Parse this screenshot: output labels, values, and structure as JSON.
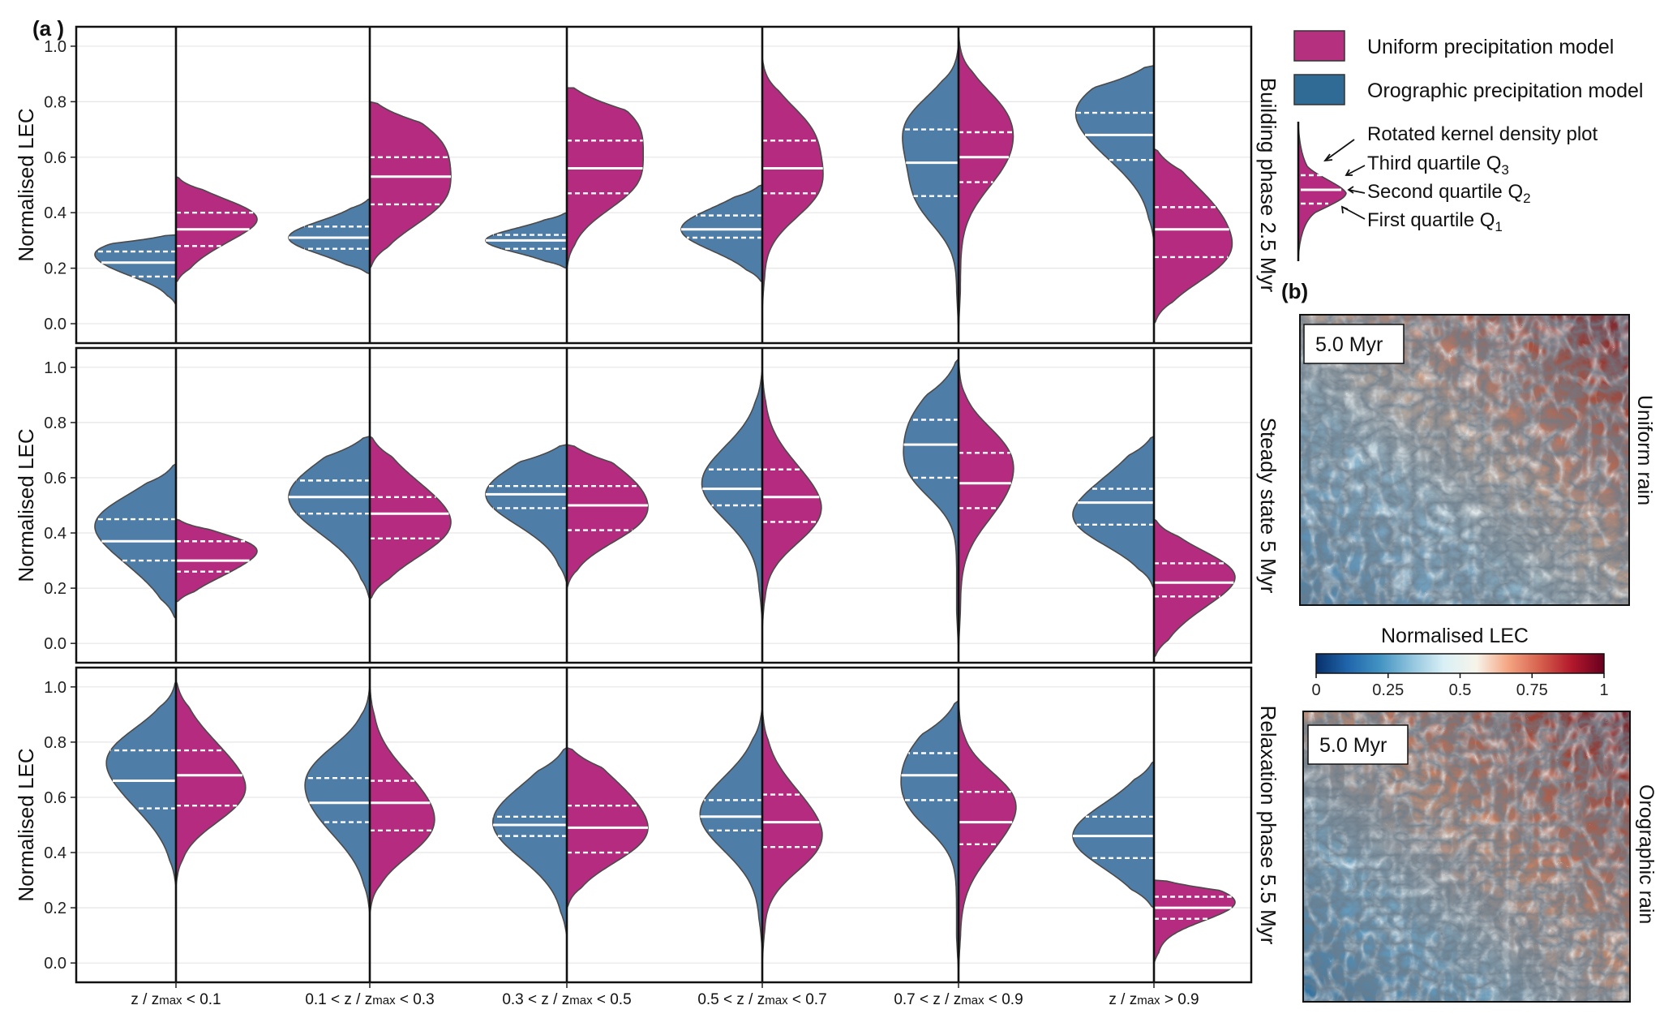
{
  "panel_labels": {
    "a": "(a )",
    "b": "(b)"
  },
  "legend": {
    "items": [
      {
        "label": "Uniform precipitation model",
        "color": "#b5307f"
      },
      {
        "label": "Orographic precipitation model",
        "color": "#2f6b94"
      }
    ],
    "violin_annotations": {
      "kde": "Rotated kernel density plot",
      "q3": "Third quartile  Q",
      "q3_sub": "3",
      "q2": "Second quartile Q",
      "q2_sub": "2",
      "q1": "First quartile Q",
      "q1_sub": "1"
    }
  },
  "maps": [
    {
      "time_label": "5.0 Myr",
      "side_label": "Uniform rain"
    },
    {
      "time_label": "5.0 Myr",
      "side_label": "Orographic rain"
    }
  ],
  "colorbar": {
    "title": "Normalised LEC",
    "ticks": [
      "0",
      "0.25",
      "0.5",
      "0.75",
      "1"
    ],
    "tick_values": [
      0,
      0.25,
      0.5,
      0.75,
      1
    ],
    "colors": [
      "#08306b",
      "#2166ac",
      "#4393c3",
      "#92c5de",
      "#d9f0f6",
      "#f7f4ea",
      "#f4a582",
      "#d6604d",
      "#b2182b",
      "#67001f"
    ]
  },
  "chart_data": {
    "type": "violin",
    "ylabel": "Normalised LEC",
    "ylim": [
      -0.07,
      1.07
    ],
    "yticks": [
      "0.0",
      "0.2",
      "0.4",
      "0.6",
      "0.8",
      "1.0"
    ],
    "ytick_values": [
      0,
      0.2,
      0.4,
      0.6,
      0.8,
      1.0
    ],
    "series_colors": {
      "orographic": "#4e7da8",
      "uniform": "#b42b7f"
    },
    "categories": [
      {
        "pre": "z / z",
        "sub": "max",
        "post": " < 0.1"
      },
      {
        "pre": "0.1 < z / z",
        "sub": "max",
        "post": " < 0.3"
      },
      {
        "pre": "0.3 < z / z",
        "sub": "max",
        "post": " < 0.5"
      },
      {
        "pre": "0.5 < z / z",
        "sub": "max",
        "post": " < 0.7"
      },
      {
        "pre": "0.7 < z / z",
        "sub": "max",
        "post": " < 0.9"
      },
      {
        "pre": "z / z",
        "sub": "max",
        "post": " > 0.9"
      }
    ],
    "panels": [
      {
        "title": "Building phase 2.5 Myr",
        "violins": [
          {
            "oro": {
              "range": [
                0.07,
                0.32
              ],
              "q": [
                0.17,
                0.22,
                0.26
              ],
              "peaks": [
                [
                  0.22,
                  0.9
                ],
                [
                  0.28,
                  0.5
                ]
              ]
            },
            "uni": {
              "range": [
                0.15,
                0.53
              ],
              "q": [
                0.28,
                0.34,
                0.4
              ],
              "peaks": [
                [
                  0.34,
                  0.95
                ],
                [
                  0.4,
                  0.7
                ]
              ]
            }
          },
          {
            "oro": {
              "range": [
                0.18,
                0.45
              ],
              "q": [
                0.27,
                0.31,
                0.35
              ],
              "peaks": [
                [
                  0.31,
                  1.0
                ]
              ]
            },
            "uni": {
              "range": [
                0.2,
                0.8
              ],
              "q": [
                0.43,
                0.53,
                0.6
              ],
              "peaks": [
                [
                  0.55,
                  1.0
                ],
                [
                  0.42,
                  0.55
                ],
                [
                  0.68,
                  0.5
                ]
              ]
            }
          },
          {
            "oro": {
              "range": [
                0.2,
                0.4
              ],
              "q": [
                0.27,
                0.3,
                0.32
              ],
              "peaks": [
                [
                  0.3,
                  0.9
                ]
              ]
            },
            "uni": {
              "range": [
                0.2,
                0.85
              ],
              "q": [
                0.47,
                0.56,
                0.66
              ],
              "peaks": [
                [
                  0.62,
                  0.9
                ],
                [
                  0.48,
                  0.55
                ],
                [
                  0.75,
                  0.5
                ]
              ]
            }
          },
          {
            "oro": {
              "range": [
                0.15,
                0.5
              ],
              "q": [
                0.31,
                0.34,
                0.39
              ],
              "peaks": [
                [
                  0.34,
                  1.0
                ]
              ]
            },
            "uni": {
              "range": [
                0.05,
                0.95
              ],
              "q": [
                0.47,
                0.56,
                0.66
              ],
              "peaks": [
                [
                  0.57,
                  1.0
                ],
                [
                  0.72,
                  0.5
                ],
                [
                  0.45,
                  0.5
                ]
              ]
            }
          },
          {
            "oro": {
              "range": [
                -0.02,
                1.0
              ],
              "q": [
                0.46,
                0.58,
                0.7
              ],
              "peaks": [
                [
                  0.6,
                  1.0
                ],
                [
                  0.75,
                  0.6
                ],
                [
                  0.42,
                  0.5
                ]
              ]
            },
            "uni": {
              "range": [
                -0.02,
                1.04
              ],
              "q": [
                0.51,
                0.6,
                0.69
              ],
              "peaks": [
                [
                  0.62,
                  1.0
                ],
                [
                  0.78,
                  0.45
                ]
              ]
            }
          },
          {
            "oro": {
              "range": [
                0.3,
                0.93
              ],
              "q": [
                0.59,
                0.68,
                0.76
              ],
              "peaks": [
                [
                  0.7,
                  1.0
                ],
                [
                  0.82,
                  0.5
                ]
              ]
            },
            "uni": {
              "range": [
                0.0,
                0.63
              ],
              "q": [
                0.24,
                0.34,
                0.42
              ],
              "peaks": [
                [
                  0.38,
                  0.9
                ],
                [
                  0.22,
                  0.6
                ]
              ]
            }
          }
        ]
      },
      {
        "title": "Steady state 5 Myr",
        "violins": [
          {
            "oro": {
              "range": [
                0.09,
                0.65
              ],
              "q": [
                0.3,
                0.37,
                0.45
              ],
              "peaks": [
                [
                  0.37,
                  1.0
                ],
                [
                  0.47,
                  0.6
                ]
              ]
            },
            "uni": {
              "range": [
                0.15,
                0.45
              ],
              "q": [
                0.26,
                0.3,
                0.37
              ],
              "peaks": [
                [
                  0.29,
                  0.9
                ],
                [
                  0.36,
                  0.7
                ]
              ]
            }
          },
          {
            "oro": {
              "range": [
                0.16,
                0.75
              ],
              "q": [
                0.47,
                0.53,
                0.59
              ],
              "peaks": [
                [
                  0.53,
                  1.0
                ]
              ]
            },
            "uni": {
              "range": [
                0.16,
                0.75
              ],
              "q": [
                0.38,
                0.47,
                0.53
              ],
              "peaks": [
                [
                  0.48,
                  1.0
                ],
                [
                  0.38,
                  0.4
                ]
              ]
            }
          },
          {
            "oro": {
              "range": [
                0.22,
                0.72
              ],
              "q": [
                0.49,
                0.54,
                0.57
              ],
              "peaks": [
                [
                  0.54,
                  1.0
                ]
              ]
            },
            "uni": {
              "range": [
                0.2,
                0.72
              ],
              "q": [
                0.41,
                0.5,
                0.57
              ],
              "peaks": [
                [
                  0.55,
                  1.0
                ],
                [
                  0.42,
                  0.5
                ]
              ]
            }
          },
          {
            "oro": {
              "range": [
                0.08,
                0.99
              ],
              "q": [
                0.5,
                0.56,
                0.63
              ],
              "peaks": [
                [
                  0.58,
                  1.0
                ]
              ]
            },
            "uni": {
              "range": [
                0.05,
                0.99
              ],
              "q": [
                0.44,
                0.53,
                0.63
              ],
              "peaks": [
                [
                  0.54,
                  1.0
                ],
                [
                  0.43,
                  0.45
                ]
              ]
            }
          },
          {
            "oro": {
              "range": [
                -0.02,
                1.03
              ],
              "q": [
                0.6,
                0.72,
                0.81
              ],
              "peaks": [
                [
                  0.78,
                  1.0
                ],
                [
                  0.6,
                  0.6
                ]
              ]
            },
            "uni": {
              "range": [
                -0.02,
                1.03
              ],
              "q": [
                0.49,
                0.58,
                0.69
              ],
              "peaks": [
                [
                  0.57,
                  1.0
                ],
                [
                  0.72,
                  0.5
                ]
              ]
            }
          },
          {
            "oro": {
              "range": [
                0.2,
                0.75
              ],
              "q": [
                0.43,
                0.51,
                0.56
              ],
              "peaks": [
                [
                  0.52,
                  1.0
                ],
                [
                  0.42,
                  0.6
                ]
              ]
            },
            "uni": {
              "range": [
                -0.05,
                0.45
              ],
              "q": [
                0.17,
                0.22,
                0.29
              ],
              "peaks": [
                [
                  0.2,
                  0.95
                ],
                [
                  0.27,
                  0.6
                ]
              ]
            }
          }
        ]
      },
      {
        "title": "Relaxation phase 5.5 Myr",
        "violins": [
          {
            "oro": {
              "range": [
                0.28,
                1.02
              ],
              "q": [
                0.56,
                0.66,
                0.77
              ],
              "peaks": [
                [
                  0.66,
                  1.0
                ],
                [
                  0.78,
                  0.6
                ]
              ]
            },
            "uni": {
              "range": [
                0.28,
                1.02
              ],
              "q": [
                0.57,
                0.68,
                0.77
              ],
              "peaks": [
                [
                  0.7,
                  1.0
                ],
                [
                  0.58,
                  0.6
                ]
              ]
            }
          },
          {
            "oro": {
              "range": [
                0.18,
                1.0
              ],
              "q": [
                0.51,
                0.58,
                0.67
              ],
              "peaks": [
                [
                  0.58,
                  1.0
                ],
                [
                  0.72,
                  0.5
                ]
              ]
            },
            "uni": {
              "range": [
                0.18,
                1.0
              ],
              "q": [
                0.48,
                0.58,
                0.66
              ],
              "peaks": [
                [
                  0.58,
                  1.0
                ],
                [
                  0.45,
                  0.5
                ]
              ]
            }
          },
          {
            "oro": {
              "range": [
                0.1,
                0.78
              ],
              "q": [
                0.46,
                0.5,
                0.53
              ],
              "peaks": [
                [
                  0.51,
                  1.0
                ]
              ]
            },
            "uni": {
              "range": [
                0.2,
                0.78
              ],
              "q": [
                0.4,
                0.49,
                0.57
              ],
              "peaks": [
                [
                  0.57,
                  0.9
                ],
                [
                  0.43,
                  0.6
                ]
              ]
            }
          },
          {
            "oro": {
              "range": [
                0.05,
                0.92
              ],
              "q": [
                0.48,
                0.53,
                0.59
              ],
              "peaks": [
                [
                  0.54,
                  1.0
                ]
              ]
            },
            "uni": {
              "range": [
                0.0,
                0.92
              ],
              "q": [
                0.42,
                0.51,
                0.61
              ],
              "peaks": [
                [
                  0.52,
                  1.0
                ],
                [
                  0.4,
                  0.5
                ]
              ]
            }
          },
          {
            "oro": {
              "range": [
                -0.03,
                0.95
              ],
              "q": [
                0.59,
                0.68,
                0.76
              ],
              "peaks": [
                [
                  0.72,
                  1.0
                ],
                [
                  0.55,
                  0.5
                ]
              ]
            },
            "uni": {
              "range": [
                -0.03,
                0.95
              ],
              "q": [
                0.43,
                0.51,
                0.62
              ],
              "peaks": [
                [
                  0.5,
                  1.0
                ],
                [
                  0.62,
                  0.6
                ]
              ]
            }
          },
          {
            "oro": {
              "range": [
                0.2,
                0.73
              ],
              "q": [
                0.38,
                0.46,
                0.53
              ],
              "peaks": [
                [
                  0.46,
                  1.0
                ]
              ]
            },
            "uni": {
              "range": [
                0.0,
                0.3
              ],
              "q": [
                0.16,
                0.2,
                0.24
              ],
              "peaks": [
                [
                  0.22,
                  1.0
                ]
              ]
            }
          }
        ]
      }
    ]
  }
}
